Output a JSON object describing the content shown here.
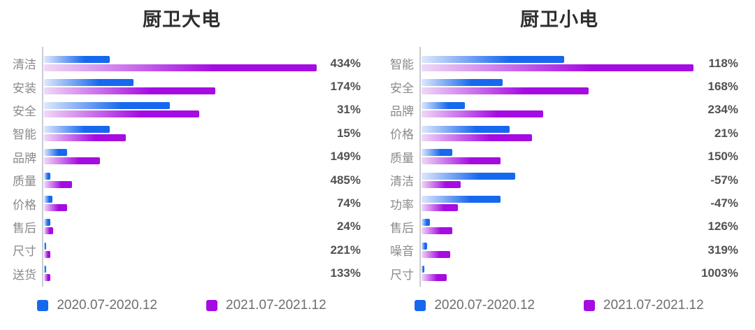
{
  "page": {
    "background": "#ffffff"
  },
  "colors": {
    "series_2020_blue": "#1668ee",
    "series_2020_blue_light": "#dfe8fb",
    "series_2021_purple": "#a50ce2",
    "series_2021_purple_light": "#f0d9f6",
    "axis_line": "#c8ccd3",
    "category_text": "#8a8a8a",
    "value_text": "#515151",
    "title_text": "#2e2e2e",
    "legend_text": "#6e6e6e"
  },
  "chart_data": [
    {
      "type": "bar",
      "orientation": "horizontal",
      "title": "厨卫大电",
      "categories": [
        "清洁",
        "安装",
        "安全",
        "智能",
        "品牌",
        "质量",
        "价格",
        "售后",
        "尺寸",
        "送货"
      ],
      "series": [
        {
          "name": "2020.07-2020.12",
          "color": "#1668ee",
          "color_light": "#dfe8fb",
          "values": [
            94,
            128,
            180,
            94,
            33,
            9,
            12,
            9,
            3,
            3
          ]
        },
        {
          "name": "2021.07-2021.12",
          "color": "#a50ce2",
          "color_light": "#f0d9f6",
          "values": [
            390,
            245,
            222,
            117,
            80,
            40,
            33,
            13,
            9,
            9
          ]
        }
      ],
      "value_labels": [
        "434%",
        "174%",
        "31%",
        "15%",
        "149%",
        "485%",
        "74%",
        "24%",
        "221%",
        "133%"
      ],
      "value_labels_meaning": "growth rate shown at right of each category row",
      "units": "bar lengths are relative magnitudes (rendered px, unlabeled axis)",
      "xlim": [
        0,
        390
      ],
      "grid": false,
      "legend_position": "bottom"
    },
    {
      "type": "bar",
      "orientation": "horizontal",
      "title": "厨卫小电",
      "categories": [
        "智能",
        "安全",
        "品牌",
        "价格",
        "质量",
        "清洁",
        "功率",
        "售后",
        "噪音",
        "尺寸"
      ],
      "series": [
        {
          "name": "2020.07-2020.12",
          "color": "#1668ee",
          "color_light": "#dfe8fb",
          "values": [
            204,
            116,
            62,
            126,
            44,
            134,
            113,
            12,
            8,
            4
          ]
        },
        {
          "name": "2021.07-2021.12",
          "color": "#a50ce2",
          "color_light": "#f0d9f6",
          "values": [
            389,
            239,
            174,
            158,
            113,
            56,
            52,
            44,
            41,
            36
          ]
        }
      ],
      "value_labels": [
        "118%",
        "168%",
        "234%",
        "21%",
        "150%",
        "-57%",
        "-47%",
        "126%",
        "319%",
        "1003%"
      ],
      "value_labels_meaning": "growth rate shown at right of each category row",
      "units": "bar lengths are relative magnitudes (rendered px, unlabeled axis)",
      "xlim": [
        0,
        390
      ],
      "grid": false,
      "legend_position": "bottom"
    }
  ]
}
